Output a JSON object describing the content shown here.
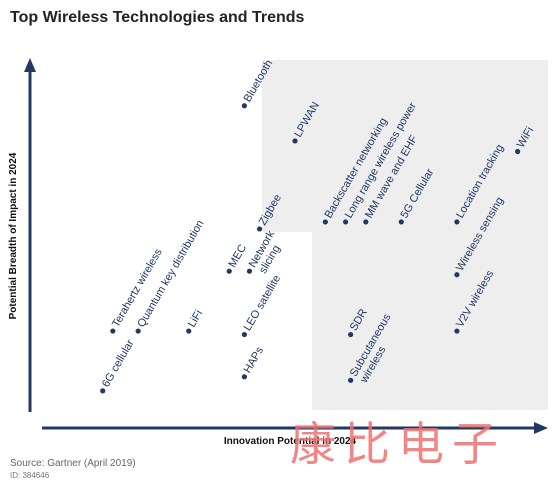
{
  "title": "Top Wireless Technologies and Trends",
  "source": "Source: Gartner (April 2019)",
  "doc_id": "ID: 384646",
  "watermark": "康比电子",
  "colors": {
    "point": "#1f3864",
    "label": "#1f3864",
    "shade": "#eeeeee",
    "axis": "#1f3864",
    "watermark": "#f07070"
  },
  "chart_data": {
    "type": "scatter",
    "xlabel": "Innovation Potential in 2024",
    "ylabel": "Potential Breadth of Impact in 2024",
    "xlim": [
      0,
      100
    ],
    "ylim": [
      0,
      100
    ],
    "grid": false,
    "points": [
      {
        "label": "Bluetooth",
        "x": 40,
        "y": 87
      },
      {
        "label": "LPWAN",
        "x": 50,
        "y": 77
      },
      {
        "label": "WiFi",
        "x": 94,
        "y": 74
      },
      {
        "label": "Backscatter networking",
        "x": 56,
        "y": 54
      },
      {
        "label": "Long range wireless power",
        "x": 60,
        "y": 54
      },
      {
        "label": "MM wave and EHF",
        "x": 64,
        "y": 54
      },
      {
        "label": "5G Cellular",
        "x": 71,
        "y": 54
      },
      {
        "label": "Location tracking",
        "x": 82,
        "y": 54
      },
      {
        "label": "Zigbee",
        "x": 43,
        "y": 52
      },
      {
        "label": "Wireless sensing",
        "x": 82,
        "y": 39
      },
      {
        "label": "MEC",
        "x": 37,
        "y": 40
      },
      {
        "label": "Network slicing",
        "x": 41,
        "y": 40
      },
      {
        "label": "Terahertz wireless",
        "x": 14,
        "y": 23
      },
      {
        "label": "Quantum key distribution",
        "x": 19,
        "y": 23
      },
      {
        "label": "LiFi",
        "x": 29,
        "y": 23
      },
      {
        "label": "LEO satellite",
        "x": 40,
        "y": 22
      },
      {
        "label": "SDR",
        "x": 61,
        "y": 22
      },
      {
        "label": "V2V wireless",
        "x": 82,
        "y": 23
      },
      {
        "label": "6G cellular",
        "x": 12,
        "y": 6
      },
      {
        "label": "HAPs",
        "x": 40,
        "y": 10
      },
      {
        "label": "Subcutaneous wireless",
        "x": 61,
        "y": 9
      }
    ]
  }
}
